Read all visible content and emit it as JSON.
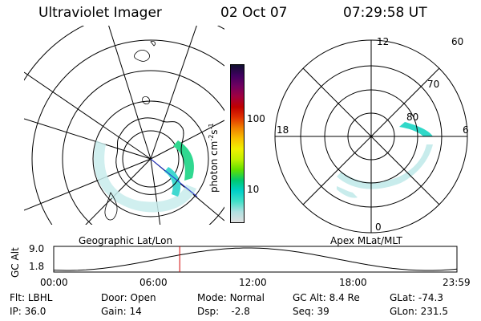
{
  "header": {
    "instrument": "Ultraviolet Imager",
    "date": "02 Oct 07",
    "time": "07:29:58 UT"
  },
  "left_map": {
    "label": "Geographic Lat/Lon"
  },
  "right_map": {
    "label": "Apex MLat/MLT",
    "lat_labels": [
      "60",
      "70",
      "80"
    ],
    "mlt_labels": {
      "top": "12",
      "left": "18",
      "right": "6",
      "bottom": "0"
    }
  },
  "colorbar": {
    "unit": "photon cm",
    "unit_sup1": "-2",
    "unit_mid": "s",
    "unit_sup2": "-1",
    "ticks": [
      "100",
      "10"
    ]
  },
  "altitude_plot": {
    "ylabel": "GC Alt",
    "yticks": [
      "9.0",
      "1.8"
    ],
    "xticks": [
      "00:00",
      "06:00",
      "12:00",
      "18:00",
      "23:59"
    ],
    "current_hour": 7.5
  },
  "status": {
    "flt_label": "Flt:",
    "flt_value": "LBHL",
    "ip_label": "IP:",
    "ip_value": "36.0",
    "door_label": "Door:",
    "door_value": "Open",
    "gain_label": "Gain:",
    "gain_value": "14",
    "mode_label": "Mode:",
    "mode_value": "Normal",
    "dsp_label": "Dsp:",
    "dsp_value": "-2.8",
    "gcalt_label": "GC Alt:",
    "gcalt_value": "8.4 Re",
    "seq_label": "Seq:",
    "seq_value": "39",
    "glat_label": "GLat:",
    "glat_value": "-74.3",
    "glon_label": "GLon:",
    "glon_value": "231.5"
  },
  "colors": {
    "colorbar": [
      "#e0e0e0",
      "#b0e0e0",
      "#40e0c8",
      "#00d0c8",
      "#00c870",
      "#60e000",
      "#c0f000",
      "#f0f000",
      "#f8c000",
      "#f08000",
      "#e03000",
      "#c00000",
      "#a00040",
      "#700060",
      "#400060",
      "#101030"
    ],
    "aurora_cyan": "#20d8c8",
    "aurora_green": "#40d860",
    "faint": "#a8e0e0",
    "time_marker": "#d00000"
  }
}
